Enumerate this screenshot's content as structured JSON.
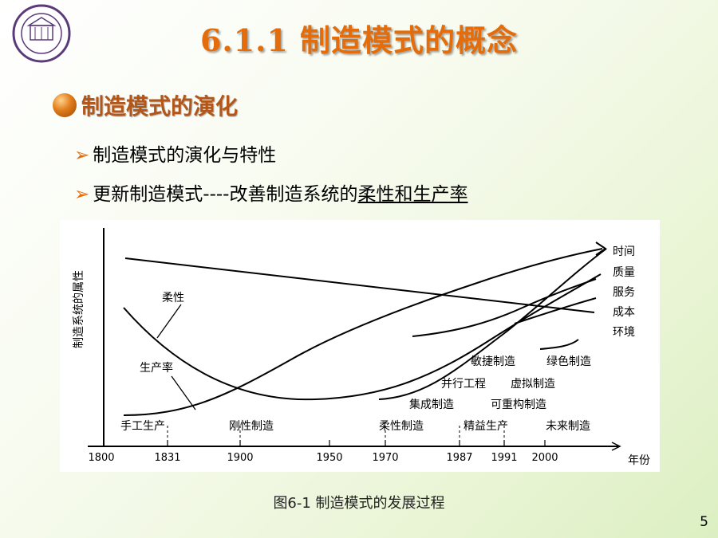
{
  "title": "6.1.1 制造模式的概念",
  "section": "制造模式的演化",
  "bullets": [
    "制造模式的演化与特性",
    "更新制造模式----改善制造系统的",
    "柔性和生产率"
  ],
  "chart": {
    "ylabel": "制造系统的属性",
    "xlabel": "年份",
    "x_ticks": [
      "1800",
      "1831",
      "1900",
      "1950",
      "1970",
      "1987",
      "1991",
      "2000"
    ],
    "curve_labels": {
      "flexibility": "柔性",
      "productivity": "生产率"
    },
    "right_labels": [
      "时间",
      "质量",
      "服务",
      "成本",
      "环境"
    ],
    "mode_labels": {
      "handcraft": "手工生产",
      "rigid": "刚性制造",
      "flexible": "柔性制造",
      "lean": "精益生产",
      "future": "未来制造",
      "agile": "敏捷制造",
      "green": "绿色制造",
      "concurrent": "并行工程",
      "virtual": "虚拟制造",
      "cims": "集成制造",
      "reconfig": "可重构制造"
    }
  },
  "caption": "图6-1 制造模式的发展过程",
  "page_number": "5",
  "colors": {
    "title": "#e46c0a",
    "section": "#b2561a"
  }
}
